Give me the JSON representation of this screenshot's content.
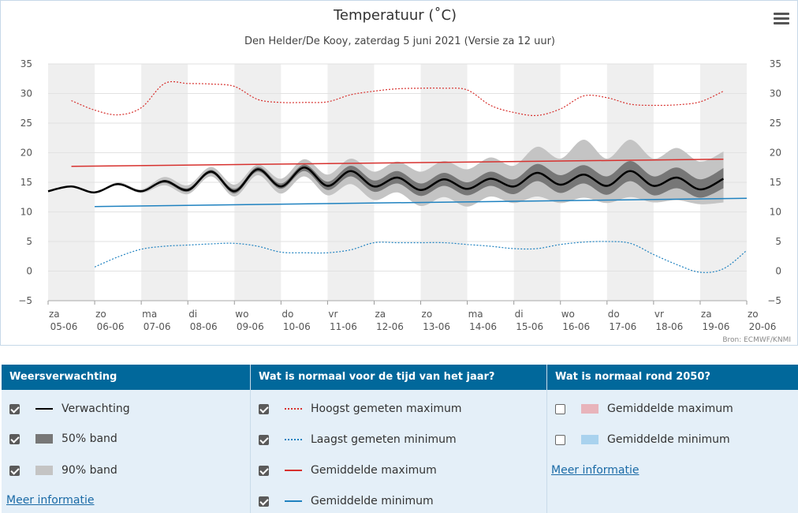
{
  "chart": {
    "title": "Temperatuur (˚C)",
    "subtitle": "Den Helder/De Kooy, zaterdag 5 juni 2021 (Versie za 12 uur)",
    "credits": "Bron: ECMWF/KNMI"
  },
  "chart_data": {
    "type": "line",
    "title": "Temperatuur (˚C)",
    "ylim": [
      -5,
      35
    ],
    "yticks": [
      -5,
      0,
      5,
      10,
      15,
      20,
      25,
      30,
      35
    ],
    "x_range": [
      0,
      15
    ],
    "categories": [
      {
        "day": "za",
        "date": "05-06"
      },
      {
        "day": "zo",
        "date": "06-06"
      },
      {
        "day": "ma",
        "date": "07-06"
      },
      {
        "day": "di",
        "date": "08-06"
      },
      {
        "day": "wo",
        "date": "09-06"
      },
      {
        "day": "do",
        "date": "10-06"
      },
      {
        "day": "vr",
        "date": "11-06"
      },
      {
        "day": "za",
        "date": "12-06"
      },
      {
        "day": "zo",
        "date": "13-06"
      },
      {
        "day": "ma",
        "date": "14-06"
      },
      {
        "day": "di",
        "date": "15-06"
      },
      {
        "day": "wo",
        "date": "16-06"
      },
      {
        "day": "do",
        "date": "17-06"
      },
      {
        "day": "vr",
        "date": "18-06"
      },
      {
        "day": "za",
        "date": "19-06"
      },
      {
        "day": "zo",
        "date": "20-06"
      }
    ],
    "series": [
      {
        "name": "Verwachting",
        "style": "solid",
        "color": "#000000",
        "points": [
          [
            0,
            13.5
          ],
          [
            0.5,
            14.3
          ],
          [
            1.0,
            13.3
          ],
          [
            1.5,
            14.7
          ],
          [
            2.0,
            13.5
          ],
          [
            2.5,
            15.2
          ],
          [
            3.0,
            13.7
          ],
          [
            3.5,
            16.8
          ],
          [
            4.0,
            13.5
          ],
          [
            4.5,
            17.2
          ],
          [
            5.0,
            14.3
          ],
          [
            5.5,
            17.5
          ],
          [
            6.0,
            14.4
          ],
          [
            6.5,
            16.9
          ],
          [
            7.0,
            14.3
          ],
          [
            7.5,
            15.8
          ],
          [
            8.0,
            13.7
          ],
          [
            8.5,
            15.5
          ],
          [
            9.0,
            13.9
          ],
          [
            9.5,
            15.6
          ],
          [
            10.0,
            14.3
          ],
          [
            10.5,
            16.6
          ],
          [
            11.0,
            14.6
          ],
          [
            11.5,
            16.3
          ],
          [
            12.0,
            14.4
          ],
          [
            12.5,
            16.9
          ],
          [
            13.0,
            14.4
          ],
          [
            13.5,
            15.8
          ],
          [
            14.0,
            13.8
          ],
          [
            14.5,
            15.6
          ]
        ]
      },
      {
        "name": "50% band",
        "style": "band",
        "color": "#777777",
        "points": [
          [
            0,
            13.5,
            13.5
          ],
          [
            0.5,
            14.3,
            14.3
          ],
          [
            1.0,
            13.3,
            13.3
          ],
          [
            1.5,
            14.7,
            14.7
          ],
          [
            2.0,
            13.5,
            13.5
          ],
          [
            2.5,
            14.9,
            15.4
          ],
          [
            3.0,
            13.4,
            14.0
          ],
          [
            3.5,
            16.5,
            17.1
          ],
          [
            4.0,
            13.1,
            13.9
          ],
          [
            4.5,
            16.8,
            17.6
          ],
          [
            5.0,
            13.9,
            14.8
          ],
          [
            5.5,
            16.9,
            18.0
          ],
          [
            6.0,
            13.7,
            15.1
          ],
          [
            6.5,
            16.0,
            17.8
          ],
          [
            7.0,
            13.4,
            15.3
          ],
          [
            7.5,
            14.8,
            16.9
          ],
          [
            8.0,
            12.7,
            14.8
          ],
          [
            8.5,
            14.4,
            16.6
          ],
          [
            9.0,
            12.8,
            15.0
          ],
          [
            9.5,
            14.4,
            16.8
          ],
          [
            10.0,
            13.0,
            15.5
          ],
          [
            10.5,
            15.2,
            18.1
          ],
          [
            11.0,
            13.2,
            16.2
          ],
          [
            11.5,
            14.8,
            17.9
          ],
          [
            12.0,
            12.9,
            16.0
          ],
          [
            12.5,
            15.2,
            18.6
          ],
          [
            13.0,
            12.8,
            16.0
          ],
          [
            13.5,
            14.0,
            17.5
          ],
          [
            14.0,
            12.4,
            15.5
          ],
          [
            14.5,
            14.0,
            17.4
          ]
        ]
      },
      {
        "name": "90% band",
        "style": "band",
        "color": "#c4c4c4",
        "points": [
          [
            0,
            13.5,
            13.5
          ],
          [
            0.5,
            14.3,
            14.3
          ],
          [
            1.0,
            13.3,
            13.3
          ],
          [
            1.5,
            14.5,
            15.0
          ],
          [
            2.0,
            13.2,
            13.8
          ],
          [
            2.5,
            14.5,
            15.9
          ],
          [
            3.0,
            13.0,
            14.5
          ],
          [
            3.5,
            16.0,
            17.6
          ],
          [
            4.0,
            12.6,
            14.6
          ],
          [
            4.5,
            16.2,
            18.0
          ],
          [
            5.0,
            13.1,
            15.6
          ],
          [
            5.5,
            16.0,
            18.9
          ],
          [
            6.0,
            12.8,
            16.3
          ],
          [
            6.5,
            14.7,
            19.0
          ],
          [
            7.0,
            12.0,
            16.8
          ],
          [
            7.5,
            13.3,
            18.5
          ],
          [
            8.0,
            11.0,
            16.8
          ],
          [
            8.5,
            12.5,
            18.6
          ],
          [
            9.0,
            10.9,
            17.2
          ],
          [
            9.5,
            12.6,
            19.2
          ],
          [
            10.0,
            11.5,
            17.8
          ],
          [
            10.5,
            12.6,
            21.0
          ],
          [
            11.0,
            11.5,
            19.0
          ],
          [
            11.5,
            12.4,
            22.2
          ],
          [
            12.0,
            11.5,
            19.0
          ],
          [
            12.5,
            12.5,
            22.2
          ],
          [
            13.0,
            11.6,
            19.0
          ],
          [
            13.5,
            12.0,
            20.8
          ],
          [
            14.0,
            11.3,
            18.5
          ],
          [
            14.5,
            11.6,
            20.2
          ]
        ]
      },
      {
        "name": "Hoogst gemeten maximum",
        "style": "dotted",
        "color": "#d7312e",
        "points": [
          [
            0.5,
            28.8
          ],
          [
            1.0,
            27.2
          ],
          [
            1.5,
            26.4
          ],
          [
            2.0,
            27.6
          ],
          [
            2.5,
            31.7
          ],
          [
            3.0,
            31.7
          ],
          [
            3.5,
            31.6
          ],
          [
            4.0,
            31.2
          ],
          [
            4.5,
            29.0
          ],
          [
            5.0,
            28.5
          ],
          [
            5.5,
            28.5
          ],
          [
            6.0,
            28.6
          ],
          [
            6.5,
            29.8
          ],
          [
            7.0,
            30.4
          ],
          [
            7.5,
            30.8
          ],
          [
            8.0,
            30.9
          ],
          [
            8.5,
            30.9
          ],
          [
            9.0,
            30.6
          ],
          [
            9.5,
            28.0
          ],
          [
            10.0,
            26.8
          ],
          [
            10.5,
            26.3
          ],
          [
            11.0,
            27.4
          ],
          [
            11.5,
            29.6
          ],
          [
            12.0,
            29.3
          ],
          [
            12.5,
            28.2
          ],
          [
            13.0,
            28.0
          ],
          [
            13.5,
            28.1
          ],
          [
            14.0,
            28.6
          ],
          [
            14.5,
            30.4
          ]
        ]
      },
      {
        "name": "Laagst gemeten minimum",
        "style": "dotted",
        "color": "#1f82c0",
        "points": [
          [
            1.0,
            0.7
          ],
          [
            1.5,
            2.4
          ],
          [
            2.0,
            3.7
          ],
          [
            2.5,
            4.2
          ],
          [
            3.0,
            4.4
          ],
          [
            3.5,
            4.6
          ],
          [
            4.0,
            4.7
          ],
          [
            4.5,
            4.2
          ],
          [
            5.0,
            3.2
          ],
          [
            5.5,
            3.1
          ],
          [
            6.0,
            3.1
          ],
          [
            6.5,
            3.6
          ],
          [
            7.0,
            4.8
          ],
          [
            7.5,
            4.8
          ],
          [
            8.0,
            4.8
          ],
          [
            8.5,
            4.8
          ],
          [
            9.0,
            4.5
          ],
          [
            9.5,
            4.2
          ],
          [
            10.0,
            3.8
          ],
          [
            10.5,
            3.8
          ],
          [
            11.0,
            4.5
          ],
          [
            11.5,
            4.9
          ],
          [
            12.0,
            5.0
          ],
          [
            12.5,
            4.7
          ],
          [
            13.0,
            2.8
          ],
          [
            13.5,
            1.1
          ],
          [
            14.0,
            -0.2
          ],
          [
            14.5,
            0.4
          ],
          [
            15.0,
            3.5
          ]
        ]
      },
      {
        "name": "Gemiddelde maximum",
        "style": "solid",
        "color": "#d7312e",
        "points": [
          [
            0.5,
            17.7
          ],
          [
            14.5,
            18.9
          ]
        ]
      },
      {
        "name": "Gemiddelde minimum",
        "style": "solid",
        "color": "#1f82c0",
        "points": [
          [
            1.0,
            10.9
          ],
          [
            15.0,
            12.3
          ]
        ]
      }
    ]
  },
  "legend": {
    "groups": [
      {
        "title": "Weersverwachting",
        "items": [
          {
            "label": "Verwachting",
            "checked": true,
            "swatch": "line",
            "color": "#000000"
          },
          {
            "label": "50% band",
            "checked": true,
            "swatch": "block",
            "color": "#777777"
          },
          {
            "label": "90% band",
            "checked": true,
            "swatch": "block",
            "color": "#c4c4c4"
          }
        ],
        "link": "Meer informatie"
      },
      {
        "title": "Wat is normaal voor de tijd van het jaar?",
        "items": [
          {
            "label": "Hoogst gemeten maximum",
            "checked": true,
            "swatch": "dotted",
            "color": "#d7312e"
          },
          {
            "label": "Laagst gemeten minimum",
            "checked": true,
            "swatch": "dotted",
            "color": "#1f82c0"
          },
          {
            "label": "Gemiddelde maximum",
            "checked": true,
            "swatch": "line",
            "color": "#d7312e"
          },
          {
            "label": "Gemiddelde minimum",
            "checked": true,
            "swatch": "line",
            "color": "#1f82c0"
          }
        ]
      },
      {
        "title": "Wat is normaal rond 2050?",
        "items": [
          {
            "label": "Gemiddelde maximum",
            "checked": false,
            "swatch": "block",
            "color": "#e8b4bb"
          },
          {
            "label": "Gemiddelde minimum",
            "checked": false,
            "swatch": "block",
            "color": "#a9d2ee"
          }
        ],
        "link": "Meer informatie"
      }
    ]
  }
}
